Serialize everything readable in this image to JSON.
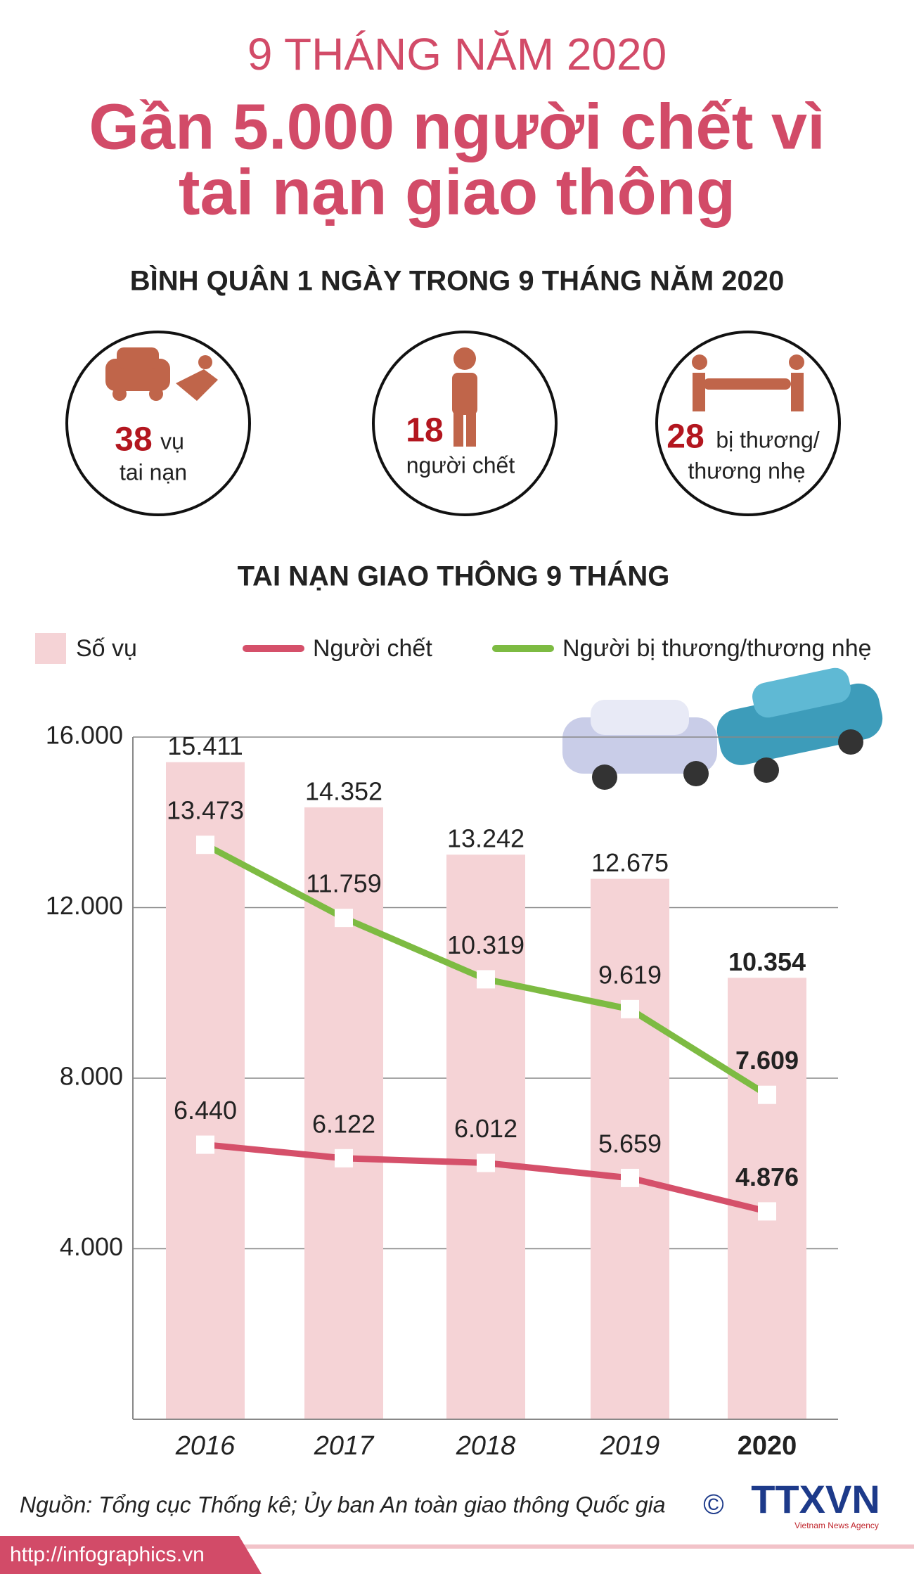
{
  "header": {
    "kicker": "9 THÁNG NĂM 2020",
    "title_line1": "Gần 5.000 người chết vì",
    "title_line2": "tai nạn giao thông"
  },
  "daily": {
    "title": "BÌNH QUÂN 1 NGÀY TRONG 9 THÁNG NĂM 2020",
    "items": [
      {
        "value": 38,
        "unit": "vụ",
        "line2": "tai nạn"
      },
      {
        "value": 18,
        "line2": "người chết"
      },
      {
        "value": 28,
        "unit": "bị thương/",
        "line2": "thương nhẹ"
      }
    ]
  },
  "chart_data": {
    "type": "bar-line",
    "title": "TAI NẠN GIAO THÔNG 9 THÁNG",
    "categories": [
      "2016",
      "2017",
      "2018",
      "2019",
      "2020"
    ],
    "series": [
      {
        "name": "Số vụ",
        "type": "bar",
        "color": "#f5d3d6",
        "values": [
          15411,
          14352,
          13242,
          12675,
          10354
        ],
        "value_labels": [
          "15.411",
          "14.352",
          "13.242",
          "12.675",
          "10.354"
        ]
      },
      {
        "name": "Người chết",
        "type": "line",
        "color": "#d5506a",
        "values": [
          6440,
          6122,
          6012,
          5659,
          4876
        ],
        "value_labels": [
          "6.440",
          "6.122",
          "6.012",
          "5.659",
          "4.876"
        ]
      },
      {
        "name": "Người bị thương/thương nhẹ",
        "type": "line",
        "color": "#7dbb42",
        "values": [
          13473,
          11759,
          10319,
          9619,
          7609
        ],
        "value_labels": [
          "13.473",
          "11.759",
          "10.319",
          "9.619",
          "7.609"
        ]
      }
    ],
    "ylim": [
      0,
      16000
    ],
    "yticks": [
      {
        "value": 4000,
        "label": "4.000"
      },
      {
        "value": 8000,
        "label": "8.000"
      },
      {
        "value": 12000,
        "label": "12.000"
      },
      {
        "value": 16000,
        "label": "16.000"
      }
    ],
    "grid": true
  },
  "source": "Nguồn: Tổng cục Thống kê; Ủy ban An toàn giao thông Quốc gia",
  "footer": {
    "url": "http://infographics.vn",
    "copyright": "©",
    "logo": "TTXVN",
    "logo_sub": "Vietnam News Agency"
  }
}
